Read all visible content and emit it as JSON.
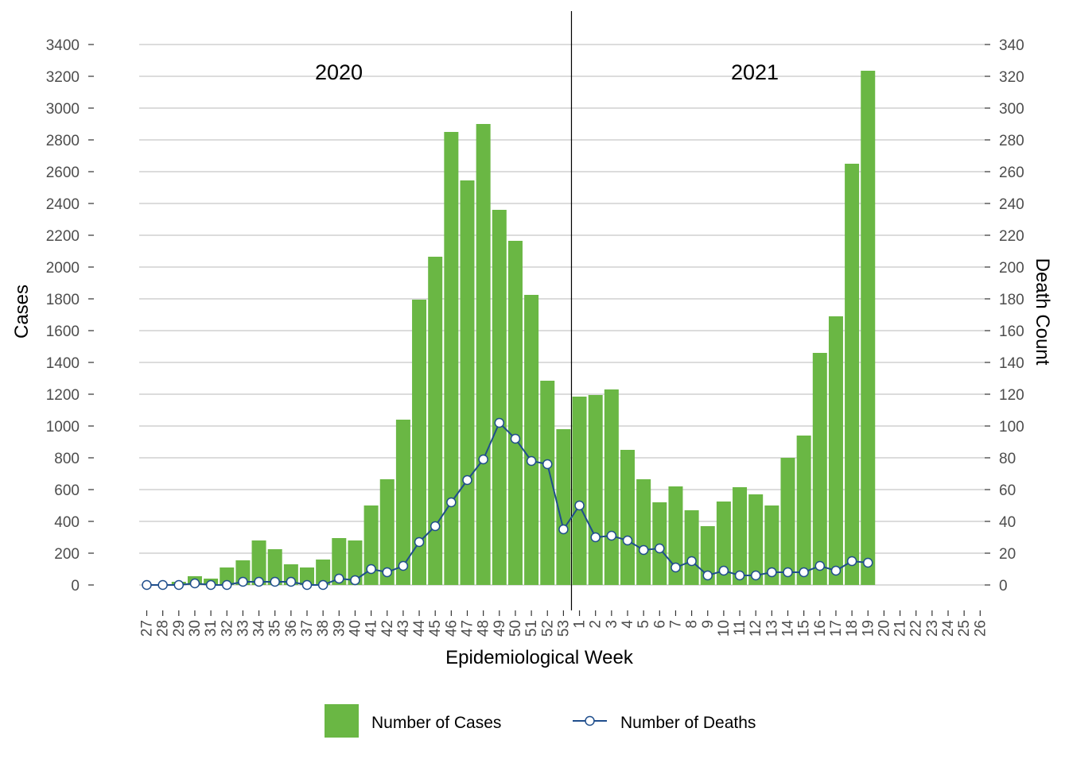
{
  "chart_data": {
    "type": "bar",
    "xlabel": "Epidemiological Week",
    "ylabel": "Cases",
    "y2label": "Death Count",
    "ylim": [
      0,
      3400
    ],
    "y2lim": [
      0,
      340
    ],
    "yticks": [
      0,
      200,
      400,
      600,
      800,
      1000,
      1200,
      1400,
      1600,
      1800,
      2000,
      2200,
      2400,
      2600,
      2800,
      3000,
      3200,
      3400
    ],
    "y2ticks": [
      0,
      20,
      40,
      60,
      80,
      100,
      120,
      140,
      160,
      180,
      200,
      220,
      240,
      260,
      280,
      300,
      320,
      340
    ],
    "grid": true,
    "legend_position": "bottom",
    "year_annotations": [
      "2020",
      "2021"
    ],
    "categories": [
      "27",
      "28",
      "29",
      "30",
      "31",
      "32",
      "33",
      "34",
      "35",
      "36",
      "37",
      "38",
      "39",
      "40",
      "41",
      "42",
      "43",
      "44",
      "45",
      "46",
      "47",
      "48",
      "49",
      "50",
      "51",
      "52",
      "53",
      "1",
      "2",
      "3",
      "4",
      "5",
      "6",
      "7",
      "8",
      "9",
      "10",
      "11",
      "12",
      "13",
      "14",
      "15",
      "16",
      "17",
      "18",
      "19",
      "20",
      "21",
      "22",
      "23",
      "24",
      "25",
      "26"
    ],
    "series": [
      {
        "name": "Number of Cases",
        "type": "bar",
        "color": "#6ab744",
        "values": [
          0,
          5,
          20,
          55,
          40,
          110,
          155,
          280,
          225,
          130,
          110,
          160,
          295,
          280,
          500,
          665,
          1040,
          1795,
          2065,
          2850,
          2545,
          2900,
          2360,
          2165,
          1825,
          1285,
          980,
          1185,
          1195,
          1230,
          850,
          665,
          520,
          620,
          470,
          370,
          525,
          615,
          570,
          500,
          800,
          940,
          1460,
          1690,
          2650,
          3235,
          null,
          null,
          null,
          null,
          null,
          null,
          null
        ]
      },
      {
        "name": "Number of Deaths",
        "type": "line",
        "color": "#1f4e8c",
        "values": [
          0,
          0,
          0,
          1,
          0,
          0,
          2,
          2,
          2,
          2,
          0,
          0,
          4,
          3,
          10,
          8,
          12,
          27,
          37,
          52,
          66,
          79,
          102,
          92,
          78,
          76,
          35,
          50,
          30,
          31,
          28,
          22,
          23,
          11,
          15,
          6,
          9,
          6,
          6,
          8,
          8,
          8,
          12,
          9,
          15,
          14,
          null,
          null,
          null,
          null,
          null,
          null,
          null
        ]
      }
    ]
  }
}
